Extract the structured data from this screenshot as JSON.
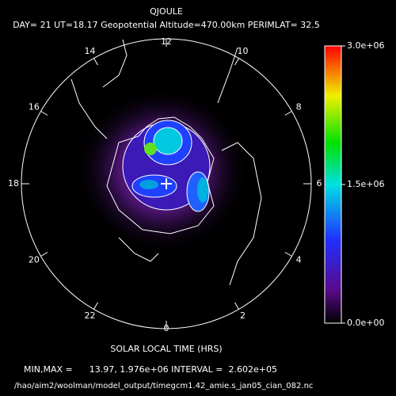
{
  "title": "QJOULE",
  "subtitle": "DAY= 21 UT=18.17 Geopotential Altitude=470.00km PERIMLAT= 32.5",
  "hours": [
    12,
    14,
    16,
    18,
    20,
    22,
    0,
    2,
    4,
    6,
    8,
    10
  ],
  "axis_label": "SOLAR LOCAL TIME (HRS)",
  "min_max": "MIN,MAX =      13.97, 1.976e+06 INTERVAL =  2.602e+05",
  "file_path": "/hao/aim2/woolman/model_output/timegcm1.42_amie.s_jan05_cian_082.nc",
  "colorbar": {
    "lim": [
      0,
      3000000
    ],
    "ticks": [
      {
        "value": 0,
        "label": "0.0e+00"
      },
      {
        "value": 1500000,
        "label": "1.5e+06"
      },
      {
        "value": 3000000,
        "label": "3.0e+06"
      }
    ]
  }
}
